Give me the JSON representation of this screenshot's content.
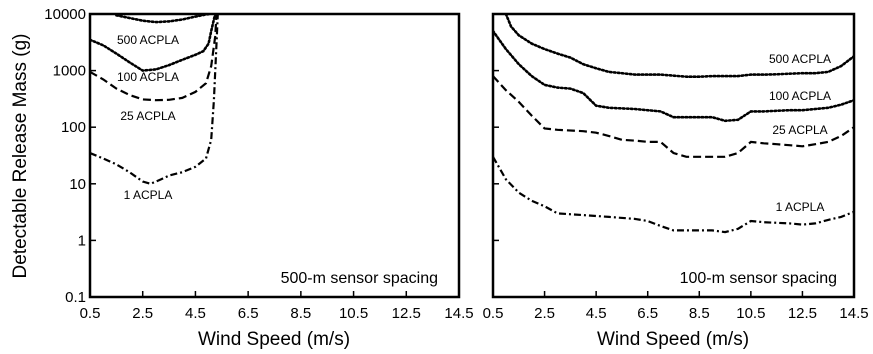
{
  "chart_data": [
    {
      "type": "line",
      "title": "",
      "annotation": "500-m sensor spacing",
      "xlabel": "Wind Speed (m/s)",
      "ylabel": "Detectable Release Mass (g)",
      "xlim": [
        0.5,
        14.5
      ],
      "ylim": [
        0.1,
        10000
      ],
      "yscale": "log",
      "xticks": [
        "0.5",
        "2.5",
        "4.5",
        "6.5",
        "8.5",
        "10.5",
        "12.5",
        "14.5"
      ],
      "yticks": [
        "0.1",
        "1",
        "10",
        "100",
        "1000",
        "10000"
      ],
      "series": [
        {
          "name": "500 ACPLA",
          "style": "dotted",
          "x": [
            1.5,
            2,
            2.5,
            3,
            3.5,
            4,
            4.5,
            4.9,
            5.05
          ],
          "y": [
            9500,
            8500,
            7600,
            7200,
            7400,
            8000,
            9000,
            9800,
            10000
          ]
        },
        {
          "name": "100 ACPLA",
          "style": "dotted",
          "x": [
            0.5,
            1,
            1.5,
            2,
            2.5,
            3,
            3.5,
            4,
            4.5,
            4.8,
            5,
            5.1,
            5.2,
            5.25
          ],
          "y": [
            3500,
            2800,
            2000,
            1400,
            1000,
            1050,
            1250,
            1550,
            1900,
            2200,
            3000,
            5000,
            8000,
            10000
          ]
        },
        {
          "name": "25 ACPLA",
          "style": "dashed",
          "x": [
            0.5,
            1,
            1.5,
            2,
            2.5,
            3,
            3.5,
            4,
            4.5,
            4.9,
            5.1,
            5.25,
            5.3
          ],
          "y": [
            950,
            700,
            480,
            370,
            310,
            300,
            305,
            330,
            420,
            600,
            1200,
            4000,
            10000
          ]
        },
        {
          "name": "1 ACPLA",
          "style": "dashdot",
          "x": [
            0.5,
            1,
            1.5,
            2,
            2.5,
            2.8,
            3.2,
            3.5,
            4,
            4.5,
            4.9,
            5.1,
            5.2,
            5.3,
            5.35
          ],
          "y": [
            35,
            28,
            22,
            16,
            11,
            10,
            12,
            14,
            16,
            20,
            28,
            60,
            300,
            3000,
            10000
          ]
        }
      ],
      "labels": [
        "500 ACPLA",
        "100 ACPLA",
        "25 ACPLA",
        "1 ACPLA"
      ]
    },
    {
      "type": "line",
      "title": "",
      "annotation": "100-m sensor spacing",
      "xlabel": "Wind Speed (m/s)",
      "ylabel": "",
      "xlim": [
        0.5,
        14.5
      ],
      "ylim": [
        0.1,
        10000
      ],
      "yscale": "log",
      "xticks": [
        "0.5",
        "2.5",
        "4.5",
        "6.5",
        "8.5",
        "10.5",
        "12.5",
        "14.5"
      ],
      "yticks": [],
      "series": [
        {
          "name": "500 ACPLA",
          "style": "dotted",
          "x": [
            1,
            1.2,
            1.5,
            2,
            2.5,
            3,
            3.5,
            4,
            4.5,
            5,
            5.5,
            6,
            7,
            8,
            8.5,
            9,
            9.5,
            10,
            10.5,
            11,
            11.5,
            12,
            12.5,
            13,
            13.5,
            14,
            14.5
          ],
          "y": [
            10000,
            6000,
            4200,
            3000,
            2400,
            2000,
            1700,
            1300,
            1100,
            950,
            900,
            850,
            850,
            780,
            780,
            800,
            800,
            800,
            850,
            850,
            860,
            880,
            900,
            900,
            950,
            1200,
            1800
          ]
        },
        {
          "name": "100 ACPLA",
          "style": "dotted",
          "x": [
            0.5,
            1,
            1.5,
            2,
            2.5,
            3,
            3.5,
            4,
            4.5,
            5,
            6,
            7,
            7.5,
            8,
            9,
            9.5,
            10,
            10.5,
            11,
            12,
            12.5,
            13,
            13.5,
            14,
            14.5
          ],
          "y": [
            5000,
            2400,
            1300,
            800,
            560,
            500,
            480,
            400,
            240,
            220,
            210,
            190,
            150,
            150,
            150,
            130,
            135,
            190,
            190,
            200,
            200,
            210,
            220,
            250,
            300
          ]
        },
        {
          "name": "25 ACPLA",
          "style": "dashed",
          "x": [
            0.5,
            1,
            1.5,
            2,
            2.5,
            3,
            4,
            4.5,
            5,
            5.5,
            6,
            6.5,
            7,
            7.5,
            8,
            9,
            9.5,
            10,
            10.5,
            11,
            11.5,
            12,
            12.5,
            13,
            13.5,
            14,
            14.5
          ],
          "y": [
            800,
            450,
            280,
            160,
            95,
            90,
            85,
            80,
            70,
            60,
            58,
            55,
            55,
            35,
            30,
            30,
            30,
            35,
            55,
            52,
            50,
            48,
            46,
            50,
            55,
            70,
            100
          ]
        },
        {
          "name": "1 ACPLA",
          "style": "dashdot",
          "x": [
            0.5,
            1,
            1.5,
            2,
            2.5,
            3,
            4,
            5,
            6,
            6.5,
            7,
            7.5,
            8,
            9,
            9.5,
            10,
            10.5,
            11,
            12,
            12.5,
            13,
            13.5,
            14,
            14.5
          ],
          "y": [
            30,
            12,
            7,
            5,
            4,
            3,
            2.8,
            2.6,
            2.4,
            2.2,
            1.8,
            1.5,
            1.5,
            1.5,
            1.4,
            1.6,
            2.2,
            2.1,
            2,
            1.9,
            2,
            2.3,
            2.6,
            3.2
          ]
        }
      ],
      "labels": [
        "500 ACPLA",
        "100 ACPLA",
        "25 ACPLA",
        "1 ACPLA"
      ]
    }
  ]
}
